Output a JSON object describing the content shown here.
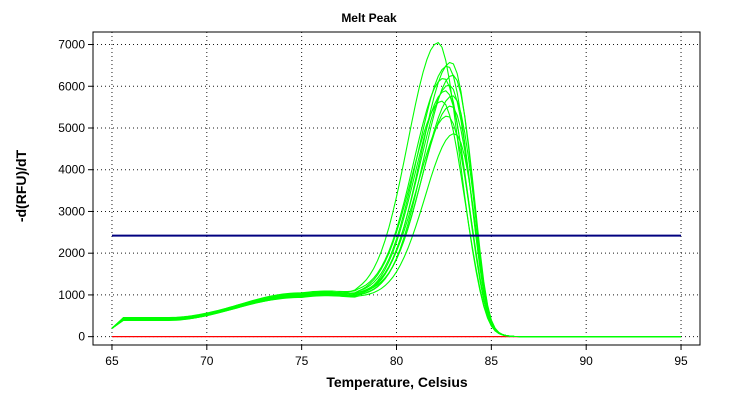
{
  "chart_data": {
    "type": "line",
    "title": "Melt Peak",
    "xlabel": "Temperature, Celsius",
    "ylabel": "-d(RFU)/dT",
    "xlim": [
      64,
      96
    ],
    "ylim": [
      -200,
      7300
    ],
    "x_ticks": [
      65,
      70,
      75,
      80,
      85,
      90,
      95
    ],
    "y_ticks": [
      0,
      1000,
      2000,
      3000,
      4000,
      5000,
      6000,
      7000
    ],
    "grid": true,
    "legend": "none",
    "colors": {
      "melt_curves": "#00ff00",
      "threshold": "#000080",
      "baseline": "#ff0000"
    },
    "threshold": {
      "y": 2420,
      "x_range": [
        65,
        95
      ]
    },
    "baseline": {
      "y": 0,
      "x_range": [
        65,
        95
      ]
    },
    "series": [
      {
        "peak_x": 82.2,
        "peak_y": 7050,
        "shoulder_y": 1000,
        "lead_y": 440
      },
      {
        "peak_x": 82.9,
        "peak_y": 6600,
        "shoulder_y": 980,
        "lead_y": 420
      },
      {
        "peak_x": 82.7,
        "peak_y": 6500,
        "shoulder_y": 1020,
        "lead_y": 460
      },
      {
        "peak_x": 83.0,
        "peak_y": 6300,
        "shoulder_y": 960,
        "lead_y": 400
      },
      {
        "peak_x": 82.5,
        "peak_y": 6200,
        "shoulder_y": 1050,
        "lead_y": 430
      },
      {
        "peak_x": 82.8,
        "peak_y": 6050,
        "shoulder_y": 1000,
        "lead_y": 410
      },
      {
        "peak_x": 82.6,
        "peak_y": 5900,
        "shoulder_y": 940,
        "lead_y": 450
      },
      {
        "peak_x": 83.0,
        "peak_y": 5800,
        "shoulder_y": 1030,
        "lead_y": 390
      },
      {
        "peak_x": 82.4,
        "peak_y": 5650,
        "shoulder_y": 990,
        "lead_y": 420
      },
      {
        "peak_x": 82.9,
        "peak_y": 5550,
        "shoulder_y": 970,
        "lead_y": 440
      },
      {
        "peak_x": 82.7,
        "peak_y": 5300,
        "shoulder_y": 1010,
        "lead_y": 410
      },
      {
        "peak_x": 83.1,
        "peak_y": 4900,
        "shoulder_y": 950,
        "lead_y": 400
      }
    ]
  }
}
